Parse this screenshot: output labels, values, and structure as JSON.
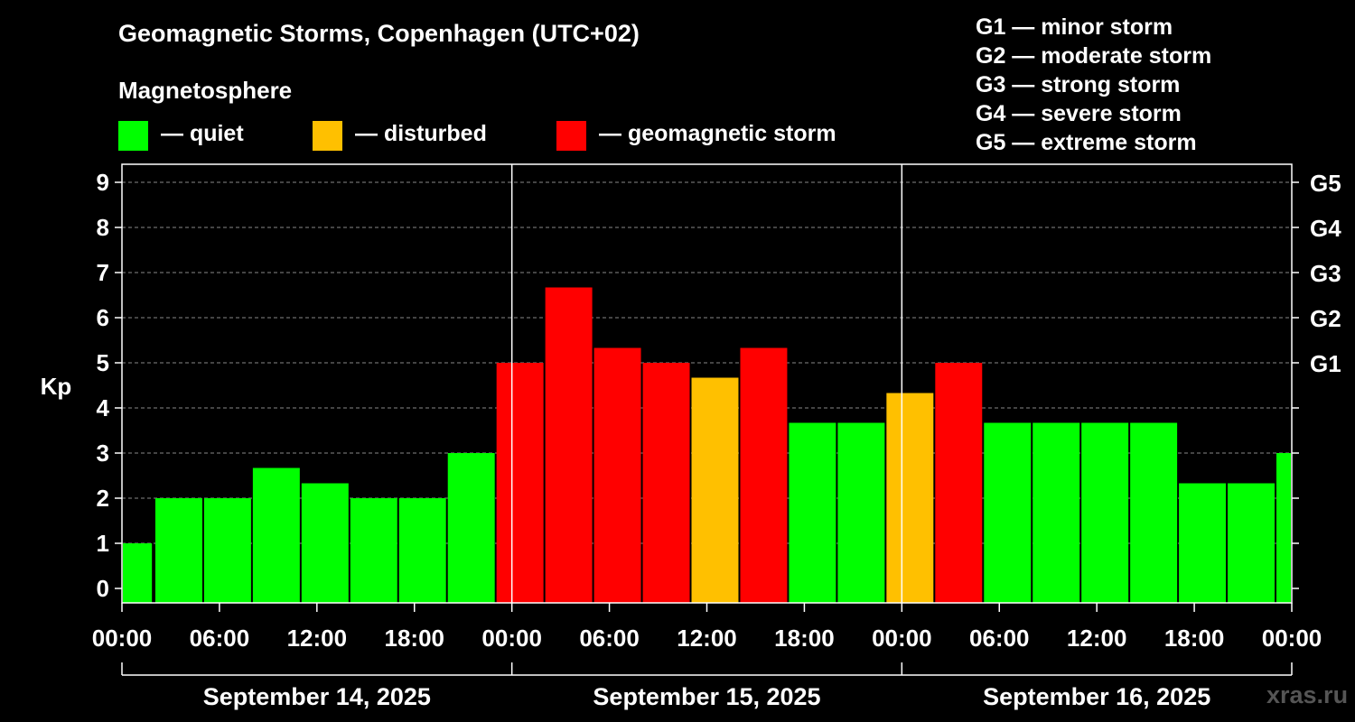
{
  "header": {
    "title": "Geomagnetic Storms, Copenhagen (UTC+02)",
    "subtitle": "Magnetosphere"
  },
  "legend": [
    {
      "label": "— quiet",
      "color": "#00ff00"
    },
    {
      "label": "— disturbed",
      "color": "#ffc000"
    },
    {
      "label": "— geomagnetic storm",
      "color": "#ff0000"
    }
  ],
  "storm_scale": [
    "G1 — minor storm",
    "G2 — moderate storm",
    "G3 — strong storm",
    "G4 — severe storm",
    "G5 — extreme storm"
  ],
  "watermark": "xras.ru",
  "colors": {
    "quiet": "#00ff00",
    "disturbed": "#ffc000",
    "storm": "#ff0000",
    "background": "#000000",
    "axis": "#ffffff"
  },
  "chart_data": {
    "type": "bar",
    "title": "Geomagnetic Storms, Copenhagen (UTC+02)",
    "ylabel": "Kp",
    "ylim": [
      0,
      9
    ],
    "y_ticks": [
      "0",
      "1",
      "2",
      "3",
      "4",
      "5",
      "6",
      "7",
      "8",
      "9"
    ],
    "right_ticks": [
      {
        "kp": 5,
        "label": "G1"
      },
      {
        "kp": 6,
        "label": "G2"
      },
      {
        "kp": 7,
        "label": "G3"
      },
      {
        "kp": 8,
        "label": "G4"
      },
      {
        "kp": 9,
        "label": "G5"
      }
    ],
    "x_range_hours": [
      0,
      72
    ],
    "x_ticks": [
      {
        "hour": 0,
        "label": "00:00"
      },
      {
        "hour": 6,
        "label": "06:00"
      },
      {
        "hour": 12,
        "label": "12:00"
      },
      {
        "hour": 18,
        "label": "18:00"
      },
      {
        "hour": 24,
        "label": "00:00"
      },
      {
        "hour": 30,
        "label": "06:00"
      },
      {
        "hour": 36,
        "label": "12:00"
      },
      {
        "hour": 42,
        "label": "18:00"
      },
      {
        "hour": 48,
        "label": "00:00"
      },
      {
        "hour": 54,
        "label": "06:00"
      },
      {
        "hour": 60,
        "label": "12:00"
      },
      {
        "hour": 66,
        "label": "18:00"
      },
      {
        "hour": 72,
        "label": "00:00"
      }
    ],
    "days": [
      {
        "label": "September 14, 2025",
        "start_hour": 0,
        "end_hour": 24
      },
      {
        "label": "September 15, 2025",
        "start_hour": 24,
        "end_hour": 48
      },
      {
        "label": "September 16, 2025",
        "start_hour": 48,
        "end_hour": 72
      }
    ],
    "bars": [
      {
        "start": 0,
        "end": 1.9,
        "kp": 1.0,
        "level": "quiet"
      },
      {
        "start": 2,
        "end": 5,
        "kp": 2.0,
        "level": "quiet"
      },
      {
        "start": 5,
        "end": 8,
        "kp": 2.0,
        "level": "quiet"
      },
      {
        "start": 8,
        "end": 11,
        "kp": 2.67,
        "level": "quiet"
      },
      {
        "start": 11,
        "end": 14,
        "kp": 2.33,
        "level": "quiet"
      },
      {
        "start": 14,
        "end": 17,
        "kp": 2.0,
        "level": "quiet"
      },
      {
        "start": 17,
        "end": 20,
        "kp": 2.0,
        "level": "quiet"
      },
      {
        "start": 20,
        "end": 23,
        "kp": 3.0,
        "level": "quiet"
      },
      {
        "start": 23,
        "end": 26,
        "kp": 5.0,
        "level": "storm"
      },
      {
        "start": 26,
        "end": 29,
        "kp": 6.67,
        "level": "storm"
      },
      {
        "start": 29,
        "end": 32,
        "kp": 5.33,
        "level": "storm"
      },
      {
        "start": 32,
        "end": 35,
        "kp": 5.0,
        "level": "storm"
      },
      {
        "start": 35,
        "end": 38,
        "kp": 4.67,
        "level": "disturbed"
      },
      {
        "start": 38,
        "end": 41,
        "kp": 5.33,
        "level": "storm"
      },
      {
        "start": 41,
        "end": 44,
        "kp": 3.67,
        "level": "quiet"
      },
      {
        "start": 44,
        "end": 47,
        "kp": 3.67,
        "level": "quiet"
      },
      {
        "start": 47,
        "end": 50,
        "kp": 4.33,
        "level": "disturbed"
      },
      {
        "start": 50,
        "end": 53,
        "kp": 5.0,
        "level": "storm"
      },
      {
        "start": 53,
        "end": 56,
        "kp": 3.67,
        "level": "quiet"
      },
      {
        "start": 56,
        "end": 59,
        "kp": 3.67,
        "level": "quiet"
      },
      {
        "start": 59,
        "end": 62,
        "kp": 3.67,
        "level": "quiet"
      },
      {
        "start": 62,
        "end": 65,
        "kp": 3.67,
        "level": "quiet"
      },
      {
        "start": 65,
        "end": 68,
        "kp": 2.33,
        "level": "quiet"
      },
      {
        "start": 68,
        "end": 71,
        "kp": 2.33,
        "level": "quiet"
      },
      {
        "start": 71,
        "end": 72,
        "kp": 3.0,
        "level": "quiet"
      }
    ]
  }
}
